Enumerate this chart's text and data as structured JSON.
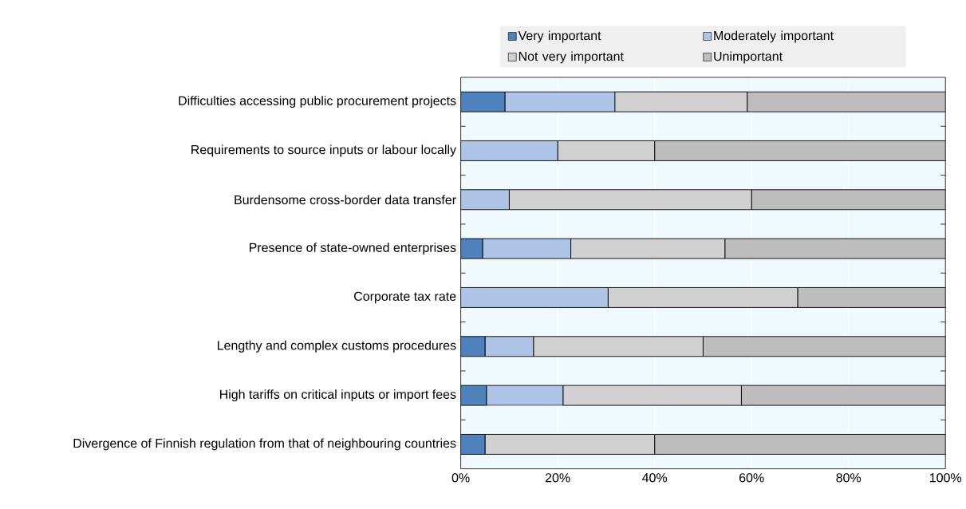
{
  "chart_data": {
    "type": "bar",
    "orientation": "horizontal",
    "stacked": true,
    "categories": [
      "Difficulties accessing public procurement projects",
      "Requirements to source inputs or labour locally",
      "Burdensome cross-border data transfer",
      "Presence of state-owned enterprises",
      "Corporate tax rate",
      "Lengthy and complex customs procedures",
      "High tariffs on critical inputs or import fees",
      "Divergence of Finnish regulation from that of neighbouring countries"
    ],
    "series": [
      {
        "name": "Very important",
        "color": "#4f81bd",
        "values": [
          9.1,
          0,
          0,
          4.5,
          0,
          5,
          5.3,
          5
        ]
      },
      {
        "name": "Moderately important",
        "color": "#adc4e7",
        "values": [
          22.7,
          20,
          10,
          18.2,
          30.4,
          10,
          15.8,
          0
        ]
      },
      {
        "name": "Not very important",
        "color": "#d0d0d0",
        "values": [
          27.3,
          20,
          50,
          31.8,
          39.1,
          35,
          36.8,
          35
        ]
      },
      {
        "name": "Unimportant",
        "color": "#bdbdbd",
        "values": [
          40.9,
          60,
          40,
          45.5,
          30.5,
          50,
          42.1,
          60
        ]
      }
    ],
    "xlim": [
      0,
      100
    ],
    "xticks": [
      {
        "value": 0,
        "label": "0%"
      },
      {
        "value": 20,
        "label": "20%"
      },
      {
        "value": 40,
        "label": "40%"
      },
      {
        "value": 60,
        "label": "60%"
      },
      {
        "value": 80,
        "label": "80%"
      },
      {
        "value": 100,
        "label": "100%"
      }
    ],
    "grid": "x",
    "legend": "top"
  }
}
